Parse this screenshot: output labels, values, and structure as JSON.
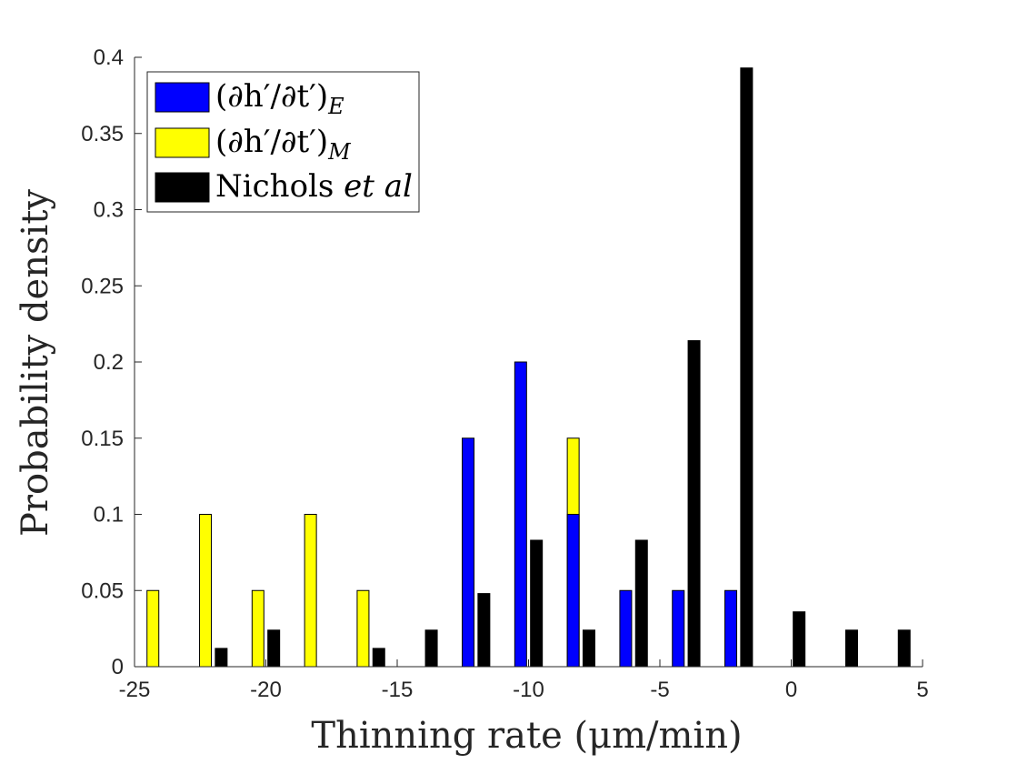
{
  "chart_data": {
    "type": "bar",
    "title": "",
    "xlabel": "Thinning rate (μm/min)",
    "ylabel": "Probability density",
    "xlim": [
      -25,
      5
    ],
    "ylim": [
      0,
      0.4
    ],
    "xticks": [
      "-25",
      "-20",
      "-15",
      "-10",
      "-5",
      "0",
      "5"
    ],
    "yticks": [
      "0",
      "0.05",
      "0.1",
      "0.15",
      "0.2",
      "0.25",
      "0.3",
      "0.35",
      "0.4"
    ],
    "grid": false,
    "legend_position": "top-left",
    "series": [
      {
        "name": "(∂h′/∂t′)_E",
        "color": "#0000ff",
        "bins": [
          {
            "x": -12.3,
            "value": 0.15
          },
          {
            "x": -10.3,
            "value": 0.2
          },
          {
            "x": -8.3,
            "value": 0.1
          },
          {
            "x": -6.3,
            "value": 0.05
          },
          {
            "x": -4.3,
            "value": 0.05
          },
          {
            "x": -2.3,
            "value": 0.05
          }
        ]
      },
      {
        "name": "(∂h′/∂t′)_M",
        "color": "#ffff00",
        "bins": [
          {
            "x": -24.3,
            "value": 0.05
          },
          {
            "x": -22.3,
            "value": 0.1
          },
          {
            "x": -20.3,
            "value": 0.05
          },
          {
            "x": -18.3,
            "value": 0.1
          },
          {
            "x": -16.3,
            "value": 0.05
          },
          {
            "x": -8.3,
            "value": 0.15
          }
        ]
      },
      {
        "name": "Nichols et al",
        "color": "#000000",
        "bins": [
          {
            "x": -21.7,
            "value": 0.012
          },
          {
            "x": -19.7,
            "value": 0.024
          },
          {
            "x": -15.7,
            "value": 0.012
          },
          {
            "x": -13.7,
            "value": 0.024
          },
          {
            "x": -11.7,
            "value": 0.048
          },
          {
            "x": -9.7,
            "value": 0.083
          },
          {
            "x": -7.7,
            "value": 0.024
          },
          {
            "x": -5.7,
            "value": 0.083
          },
          {
            "x": -3.7,
            "value": 0.214
          },
          {
            "x": -1.7,
            "value": 0.393
          },
          {
            "x": 0.3,
            "value": 0.036
          },
          {
            "x": 2.3,
            "value": 0.024
          },
          {
            "x": 4.3,
            "value": 0.024
          }
        ]
      }
    ],
    "legend": {
      "entries": [
        {
          "base": "(∂h′/∂t′)",
          "sub": "E",
          "color": "#0000ff"
        },
        {
          "base": "(∂h′/∂t′)",
          "sub": "M",
          "color": "#ffff00"
        },
        {
          "base": "Nichols ",
          "italic": "et al",
          "color": "#000000"
        }
      ]
    }
  }
}
